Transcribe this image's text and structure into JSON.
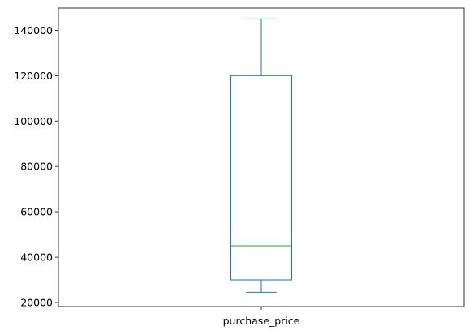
{
  "chart_data": {
    "type": "box",
    "categories": [
      "purchase_price"
    ],
    "series": [
      {
        "category": "purchase_price",
        "whisker_low": 24500,
        "q1": 30000,
        "median": 45000,
        "q3": 120000,
        "whisker_high": 145000
      }
    ],
    "ylim": [
      18200,
      149800
    ],
    "yticks": [
      20000,
      40000,
      60000,
      80000,
      100000,
      120000,
      140000
    ],
    "ytick_labels": [
      "20000",
      "40000",
      "60000",
      "80000",
      "100000",
      "120000",
      "140000"
    ],
    "title": "",
    "xlabel": "",
    "ylabel": "",
    "grid": false,
    "colors": {
      "box": "#1f77b4",
      "median": "#2ca02c",
      "axes": "#000000"
    }
  }
}
